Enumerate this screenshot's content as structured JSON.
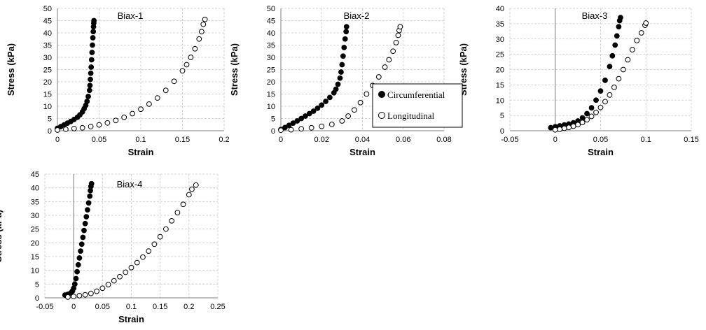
{
  "legend": {
    "items": [
      {
        "label": "Circumferential",
        "marker": "filled-circle"
      },
      {
        "label": "Longitudinal",
        "marker": "open-circle"
      }
    ]
  },
  "chart_data": [
    {
      "type": "scatter",
      "title": "Biax-1",
      "xlabel": "Strain",
      "ylabel": "Stress (kPa)",
      "xlim": [
        0,
        0.2
      ],
      "ylim": [
        0,
        50
      ],
      "xticks": [
        0,
        0.05,
        0.1,
        0.15,
        0.2
      ],
      "xtick_labels": [
        "0",
        "0.05",
        "0.1",
        "0.15",
        "0.2"
      ],
      "yticks": [
        0,
        5,
        10,
        15,
        20,
        25,
        30,
        35,
        40,
        45,
        50
      ],
      "grid": true,
      "series": [
        {
          "name": "Circumferential",
          "marker": "filled",
          "points": [
            [
              0,
              1
            ],
            [
              0.004,
              1.7
            ],
            [
              0.008,
              2.4
            ],
            [
              0.012,
              3.1
            ],
            [
              0.016,
              3.8
            ],
            [
              0.02,
              4.6
            ],
            [
              0.024,
              5.5
            ],
            [
              0.027,
              6.5
            ],
            [
              0.03,
              7.7
            ],
            [
              0.032,
              9
            ],
            [
              0.034,
              10.4
            ],
            [
              0.0355,
              12
            ],
            [
              0.037,
              14
            ],
            [
              0.0385,
              16.5
            ],
            [
              0.039,
              18.5
            ],
            [
              0.0395,
              21
            ],
            [
              0.04,
              23.5
            ],
            [
              0.0405,
              26
            ],
            [
              0.041,
              29
            ],
            [
              0.0415,
              32
            ],
            [
              0.042,
              35
            ],
            [
              0.0425,
              38
            ],
            [
              0.043,
              40.5
            ],
            [
              0.0433,
              42.5
            ],
            [
              0.0436,
              44
            ],
            [
              0.0438,
              45
            ]
          ]
        },
        {
          "name": "Longitudinal",
          "marker": "open",
          "points": [
            [
              0,
              0.3
            ],
            [
              0.01,
              0.6
            ],
            [
              0.02,
              0.9
            ],
            [
              0.03,
              1.2
            ],
            [
              0.04,
              1.7
            ],
            [
              0.05,
              2.4
            ],
            [
              0.06,
              3.2
            ],
            [
              0.07,
              4.2
            ],
            [
              0.08,
              5.5
            ],
            [
              0.09,
              7
            ],
            [
              0.1,
              8.8
            ],
            [
              0.11,
              10.9
            ],
            [
              0.12,
              13.4
            ],
            [
              0.13,
              16.5
            ],
            [
              0.14,
              20.2
            ],
            [
              0.15,
              24.5
            ],
            [
              0.155,
              27
            ],
            [
              0.16,
              30
            ],
            [
              0.165,
              33.5
            ],
            [
              0.17,
              37.5
            ],
            [
              0.173,
              40.5
            ],
            [
              0.175,
              43.5
            ],
            [
              0.177,
              45.5
            ]
          ]
        }
      ]
    },
    {
      "type": "scatter",
      "title": "Biax-2",
      "xlabel": "Strain",
      "ylabel": "Stress (kPa)",
      "xlim": [
        0,
        0.08
      ],
      "ylim": [
        0,
        50
      ],
      "xticks": [
        0,
        0.02,
        0.04,
        0.06,
        0.08
      ],
      "xtick_labels": [
        "0",
        "0.02",
        "0.04",
        "0.06",
        "0.08"
      ],
      "yticks": [
        0,
        5,
        10,
        15,
        20,
        25,
        30,
        35,
        40,
        45,
        50
      ],
      "grid": true,
      "legend": "inside-right",
      "series": [
        {
          "name": "Circumferential",
          "marker": "filled",
          "points": [
            [
              0,
              0.5
            ],
            [
              0.002,
              1.3
            ],
            [
              0.004,
              2.2
            ],
            [
              0.006,
              3.1
            ],
            [
              0.008,
              4
            ],
            [
              0.01,
              5
            ],
            [
              0.012,
              6
            ],
            [
              0.014,
              7
            ],
            [
              0.016,
              8
            ],
            [
              0.018,
              9.2
            ],
            [
              0.02,
              10.5
            ],
            [
              0.022,
              12
            ],
            [
              0.024,
              13.6
            ],
            [
              0.026,
              15.5
            ],
            [
              0.027,
              17
            ],
            [
              0.028,
              19
            ],
            [
              0.029,
              21.5
            ],
            [
              0.0295,
              24
            ],
            [
              0.03,
              27
            ],
            [
              0.0305,
              30.5
            ],
            [
              0.031,
              34
            ],
            [
              0.0315,
              37.5
            ],
            [
              0.032,
              40.5
            ],
            [
              0.0322,
              42.5
            ]
          ]
        },
        {
          "name": "Longitudinal",
          "marker": "open",
          "points": [
            [
              0,
              0.2
            ],
            [
              0.005,
              0.4
            ],
            [
              0.01,
              0.8
            ],
            [
              0.015,
              1.2
            ],
            [
              0.02,
              1.8
            ],
            [
              0.025,
              2.6
            ],
            [
              0.03,
              4
            ],
            [
              0.033,
              6
            ],
            [
              0.036,
              8.5
            ],
            [
              0.039,
              11.5
            ],
            [
              0.042,
              15
            ],
            [
              0.045,
              18.5
            ],
            [
              0.048,
              22
            ],
            [
              0.051,
              26
            ],
            [
              0.053,
              29
            ],
            [
              0.055,
              32.5
            ],
            [
              0.0565,
              36
            ],
            [
              0.0575,
              39
            ],
            [
              0.058,
              41
            ],
            [
              0.0585,
              42.5
            ]
          ]
        }
      ]
    },
    {
      "type": "scatter",
      "title": "Biax-3",
      "xlabel": "Strain",
      "ylabel": "Stress (kPa)",
      "xlim": [
        -0.05,
        0.15
      ],
      "ylim": [
        0,
        40
      ],
      "xticks": [
        -0.05,
        0,
        0.05,
        0.1,
        0.15
      ],
      "xtick_labels": [
        "-0.05",
        "0",
        "0.05",
        "0.1",
        "0.15"
      ],
      "yticks": [
        0,
        5,
        10,
        15,
        20,
        25,
        30,
        35,
        40
      ],
      "grid": true,
      "series": [
        {
          "name": "Circumferential",
          "marker": "filled",
          "points": [
            [
              -0.005,
              1
            ],
            [
              0,
              1.3
            ],
            [
              0.005,
              1.6
            ],
            [
              0.01,
              1.9
            ],
            [
              0.015,
              2.2
            ],
            [
              0.02,
              2.6
            ],
            [
              0.025,
              3.2
            ],
            [
              0.03,
              4.2
            ],
            [
              0.035,
              5.6
            ],
            [
              0.04,
              7.5
            ],
            [
              0.045,
              10
            ],
            [
              0.05,
              13
            ],
            [
              0.055,
              16.5
            ],
            [
              0.06,
              21
            ],
            [
              0.063,
              24.5
            ],
            [
              0.066,
              28
            ],
            [
              0.068,
              31
            ],
            [
              0.07,
              34
            ],
            [
              0.071,
              36
            ],
            [
              0.072,
              37
            ]
          ]
        },
        {
          "name": "Longitudinal",
          "marker": "open",
          "points": [
            [
              0,
              0.3
            ],
            [
              0.005,
              0.5
            ],
            [
              0.01,
              0.8
            ],
            [
              0.015,
              1.1
            ],
            [
              0.02,
              1.5
            ],
            [
              0.025,
              2
            ],
            [
              0.03,
              2.7
            ],
            [
              0.035,
              3.6
            ],
            [
              0.04,
              4.7
            ],
            [
              0.045,
              6
            ],
            [
              0.05,
              7.6
            ],
            [
              0.055,
              9.5
            ],
            [
              0.06,
              11.7
            ],
            [
              0.065,
              14.2
            ],
            [
              0.07,
              17
            ],
            [
              0.075,
              20
            ],
            [
              0.08,
              23.2
            ],
            [
              0.085,
              26.5
            ],
            [
              0.09,
              29.5
            ],
            [
              0.095,
              32
            ],
            [
              0.099,
              34.5
            ],
            [
              0.1,
              35.2
            ]
          ]
        }
      ]
    },
    {
      "type": "scatter",
      "title": "Biax-4",
      "xlabel": "Strain",
      "ylabel": "Stress (kPa)",
      "xlim": [
        -0.05,
        0.25
      ],
      "ylim": [
        0,
        45
      ],
      "xticks": [
        -0.05,
        0,
        0.05,
        0.1,
        0.15,
        0.2,
        0.25
      ],
      "xtick_labels": [
        "-0.05",
        "0",
        "0.05",
        "0.1",
        "0.15",
        "0.2",
        "0.25"
      ],
      "yticks": [
        0,
        5,
        10,
        15,
        20,
        25,
        30,
        35,
        40,
        45
      ],
      "grid": true,
      "series": [
        {
          "name": "Circumferential",
          "marker": "filled",
          "points": [
            [
              -0.015,
              1
            ],
            [
              -0.01,
              1.3
            ],
            [
              -0.005,
              1.8
            ],
            [
              -0.002,
              2.5
            ],
            [
              0,
              3.5
            ],
            [
              0.002,
              5
            ],
            [
              0.004,
              7
            ],
            [
              0.006,
              9.5
            ],
            [
              0.008,
              12
            ],
            [
              0.01,
              14.5
            ],
            [
              0.012,
              17
            ],
            [
              0.014,
              19.5
            ],
            [
              0.016,
              22
            ],
            [
              0.018,
              24.5
            ],
            [
              0.02,
              27
            ],
            [
              0.022,
              29.5
            ],
            [
              0.024,
              32
            ],
            [
              0.026,
              34.5
            ],
            [
              0.028,
              37
            ],
            [
              0.029,
              39
            ],
            [
              0.03,
              40.5
            ],
            [
              0.031,
              41.5
            ]
          ]
        },
        {
          "name": "Longitudinal",
          "marker": "open",
          "points": [
            [
              -0.01,
              0.3
            ],
            [
              0,
              0.5
            ],
            [
              0.01,
              0.8
            ],
            [
              0.02,
              1.1
            ],
            [
              0.03,
              1.6
            ],
            [
              0.04,
              2.4
            ],
            [
              0.05,
              3.5
            ],
            [
              0.06,
              4.8
            ],
            [
              0.07,
              6.2
            ],
            [
              0.08,
              7.7
            ],
            [
              0.09,
              9.3
            ],
            [
              0.1,
              11
            ],
            [
              0.11,
              12.8
            ],
            [
              0.12,
              14.8
            ],
            [
              0.13,
              17
            ],
            [
              0.14,
              19.5
            ],
            [
              0.15,
              22.2
            ],
            [
              0.16,
              25
            ],
            [
              0.17,
              28
            ],
            [
              0.18,
              31
            ],
            [
              0.19,
              34
            ],
            [
              0.2,
              37.5
            ],
            [
              0.205,
              39.5
            ],
            [
              0.212,
              41
            ]
          ]
        }
      ]
    }
  ]
}
